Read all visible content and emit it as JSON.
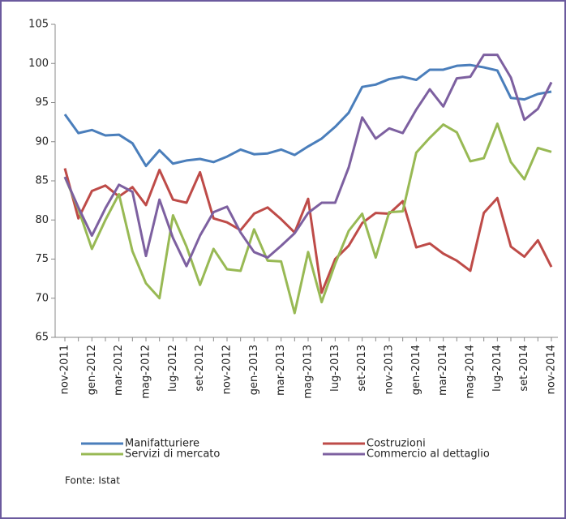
{
  "chart_data": {
    "type": "line",
    "categories": [
      "nov-2011",
      null,
      "gen-2012",
      null,
      "mar-2012",
      null,
      "mag-2012",
      null,
      "lug-2012",
      null,
      "set-2012",
      null,
      "nov-2012",
      null,
      "gen-2013",
      null,
      "mar-2013",
      null,
      "mag-2013",
      null,
      "lug-2013",
      null,
      "set-2013",
      null,
      "nov-2013",
      null,
      "gen-2014",
      null,
      "mar-2014",
      null,
      "mag-2014",
      null,
      "lug-2014",
      null,
      "set-2014",
      null,
      "nov-2014"
    ],
    "series": [
      {
        "name": "Manifatturiere",
        "color": "#4a7ebb",
        "values": [
          93.5,
          91.1,
          91.5,
          90.8,
          90.9,
          89.8,
          86.9,
          88.9,
          87.2,
          87.6,
          87.8,
          87.4,
          88.1,
          89.0,
          88.4,
          88.5,
          89.0,
          88.3,
          89.4,
          90.4,
          91.9,
          93.7,
          97.0,
          97.3,
          98.0,
          98.3,
          97.9,
          99.2,
          99.2,
          99.7,
          99.8,
          99.5,
          99.1,
          95.6,
          95.4,
          96.1,
          96.4
        ]
      },
      {
        "name": "Costruzioni",
        "color": "#be4b48",
        "values": [
          86.6,
          80.2,
          83.7,
          84.4,
          83.0,
          84.2,
          81.9,
          86.4,
          82.6,
          82.2,
          86.1,
          80.2,
          79.7,
          78.7,
          80.8,
          81.6,
          80.1,
          78.4,
          82.7,
          70.7,
          75.0,
          76.7,
          79.6,
          80.9,
          80.8,
          82.4,
          76.5,
          77.0,
          75.7,
          74.8,
          73.5,
          80.9,
          82.8,
          76.6,
          75.3,
          77.4,
          74.0
        ]
      },
      {
        "name": "Servizi di mercato",
        "color": "#98b954",
        "values": [
          85.5,
          81.4,
          76.3,
          80.0,
          83.3,
          76.0,
          71.9,
          70.0,
          80.6,
          76.6,
          71.7,
          76.3,
          73.7,
          73.5,
          78.8,
          74.8,
          74.7,
          68.1,
          75.9,
          69.5,
          74.4,
          78.6,
          80.8,
          75.2,
          81.0,
          81.1,
          88.6,
          90.5,
          92.2,
          91.2,
          87.5,
          87.9,
          92.3,
          87.4,
          85.2,
          89.2,
          88.7
        ]
      },
      {
        "name": "Commercio al dettaglio",
        "color": "#7d60a0",
        "values": [
          85.5,
          81.6,
          78.0,
          81.5,
          84.5,
          83.6,
          75.4,
          82.6,
          77.7,
          74.1,
          78.0,
          81.0,
          81.7,
          78.4,
          75.9,
          75.2,
          76.7,
          78.3,
          80.9,
          82.2,
          82.2,
          86.7,
          93.1,
          90.4,
          91.7,
          91.1,
          94.1,
          96.7,
          94.5,
          98.1,
          98.3,
          101.1,
          101.1,
          98.2,
          92.8,
          94.2,
          97.6
        ]
      }
    ],
    "ylim": [
      65,
      105
    ],
    "yticks": [
      65,
      70,
      75,
      80,
      85,
      90,
      95,
      100,
      105
    ],
    "grid": false,
    "source": "Fonte: Istat"
  }
}
